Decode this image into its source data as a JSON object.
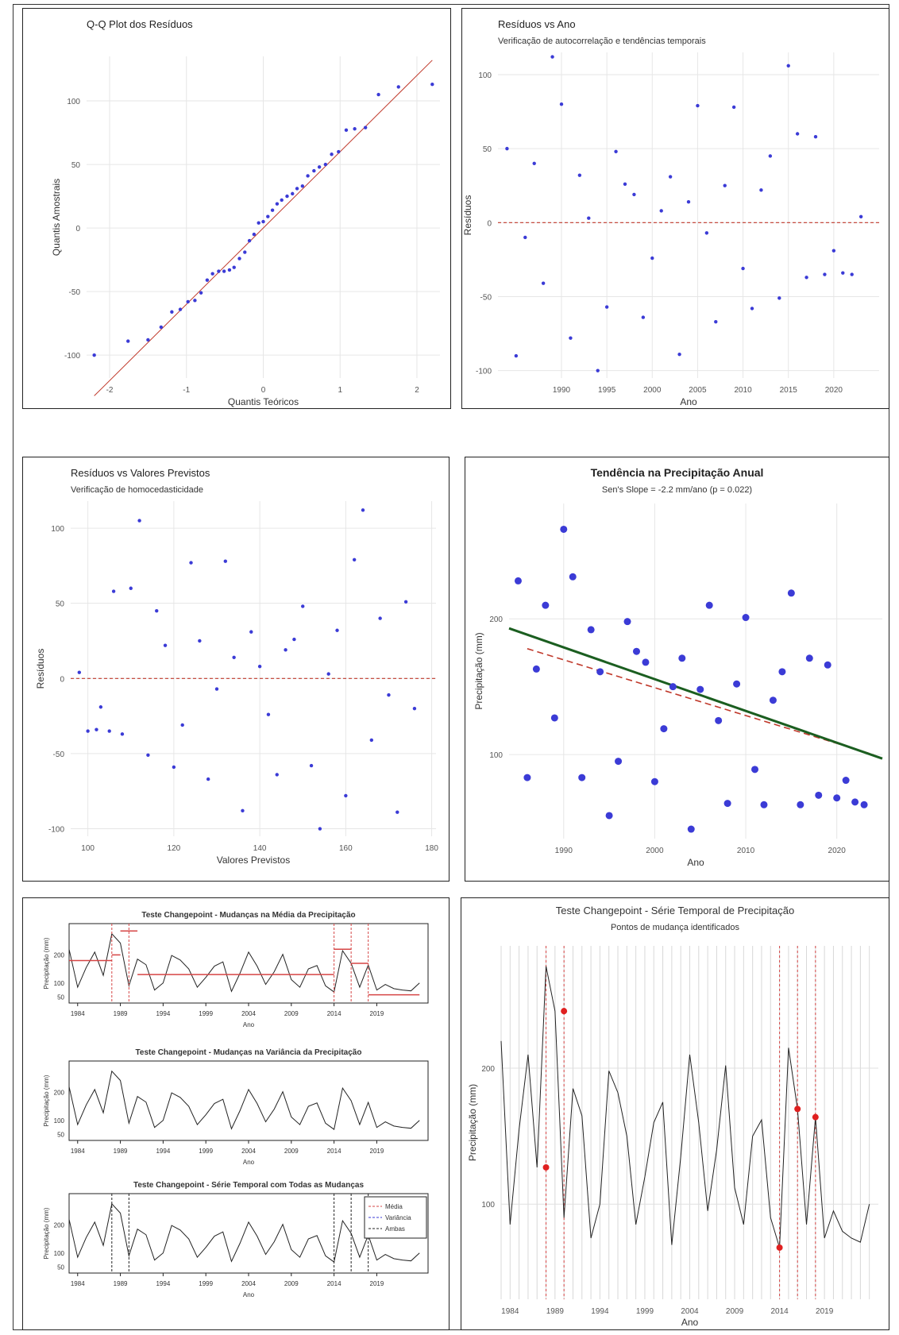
{
  "colors": {
    "point": "#3b3bd6",
    "ref": "#c0392b",
    "trend": "#1b5e20",
    "seg": "#d64545",
    "line": "#222",
    "grid": "#e6e6e6"
  },
  "chart_data": [
    {
      "id": "qq",
      "type": "scatter",
      "title": "Q-Q Plot dos Resíduos",
      "xlabel": "Quantis Teóricos",
      "ylabel": "Quantis Amostrais",
      "xlim": [
        -2.3,
        2.3
      ],
      "ylim": [
        -118,
        135
      ],
      "xticks": [
        -2,
        -1,
        0,
        1,
        2
      ],
      "yticks": [
        -100,
        -50,
        0,
        50,
        100
      ],
      "reference_line": {
        "x": [
          -2.2,
          2.2
        ],
        "y": [
          -132,
          132
        ]
      },
      "points": {
        "x": [
          -2.2,
          -1.76,
          -1.5,
          -1.33,
          -1.19,
          -1.08,
          -0.98,
          -0.89,
          -0.81,
          -0.73,
          -0.66,
          -0.58,
          -0.51,
          -0.44,
          -0.38,
          -0.31,
          -0.24,
          -0.18,
          -0.12,
          -0.06,
          0,
          0.06,
          0.12,
          0.18,
          0.24,
          0.31,
          0.38,
          0.44,
          0.51,
          0.58,
          0.66,
          0.73,
          0.81,
          0.89,
          0.98,
          1.08,
          1.19,
          1.33,
          1.5,
          1.76,
          2.2
        ],
        "y": [
          -100,
          -89,
          -88,
          -78,
          -66,
          -64,
          -58,
          -57,
          -51,
          -41,
          -36,
          -34,
          -34,
          -33,
          -31,
          -24,
          -19,
          -10,
          -5,
          4,
          5,
          9,
          14,
          19,
          22,
          25,
          27,
          31,
          33,
          41,
          45,
          48,
          50,
          58,
          60,
          77,
          78,
          79,
          105,
          111,
          113
        ]
      }
    },
    {
      "id": "ano",
      "type": "scatter",
      "title": "Resíduos vs Ano",
      "subtitle": "Verificação de autocorrelação e tendências temporais",
      "xlabel": "Ano",
      "ylabel": "Resíduos",
      "xlim": [
        1983,
        2025
      ],
      "ylim": [
        -105,
        115
      ],
      "xticks": [
        1990,
        1995,
        2000,
        2005,
        2010,
        2015,
        2020
      ],
      "yticks": [
        -100,
        -50,
        0,
        50,
        100
      ],
      "hline": 0,
      "points": {
        "x": [
          1984,
          1985,
          1986,
          1987,
          1988,
          1989,
          1990,
          1991,
          1992,
          1993,
          1994,
          1995,
          1996,
          1997,
          1998,
          1999,
          2000,
          2001,
          2002,
          2003,
          2004,
          2005,
          2006,
          2007,
          2008,
          2009,
          2010,
          2011,
          2012,
          2013,
          2014,
          2015,
          2016,
          2017,
          2018,
          2019,
          2020,
          2021,
          2022,
          2023
        ],
        "y": [
          50,
          -90,
          -10,
          40,
          -41,
          112,
          80,
          -78,
          32,
          3,
          -100,
          -57,
          48,
          26,
          19,
          -64,
          -24,
          8,
          31,
          -89,
          14,
          79,
          -7,
          -67,
          25,
          78,
          -31,
          -58,
          22,
          45,
          -51,
          106,
          60,
          -37,
          58,
          -35,
          -19,
          -34,
          -35,
          4
        ]
      }
    },
    {
      "id": "prev",
      "type": "scatter",
      "title": "Resíduos vs Valores Previstos",
      "subtitle": "Verificação de homocedasticidade",
      "xlabel": "Valores Previstos",
      "ylabel": "Resíduos",
      "xlim": [
        96,
        181
      ],
      "ylim": [
        -105,
        118
      ],
      "xticks": [
        100,
        120,
        140,
        160,
        180
      ],
      "yticks": [
        -100,
        -50,
        0,
        50,
        100
      ],
      "hline": 0,
      "points": {
        "x": [
          98,
          100,
          102,
          103,
          105,
          106,
          108,
          110,
          112,
          114,
          116,
          118,
          120,
          122,
          124,
          126,
          128,
          130,
          132,
          134,
          136,
          138,
          140,
          142,
          144,
          146,
          148,
          150,
          152,
          154,
          156,
          158,
          160,
          162,
          164,
          166,
          168,
          170,
          172,
          174,
          176
        ],
        "y": [
          4,
          -35,
          -34,
          -19,
          -35,
          58,
          -37,
          60,
          105,
          -51,
          45,
          22,
          -59,
          -31,
          77,
          25,
          -67,
          -7,
          78,
          14,
          -88,
          31,
          8,
          -24,
          -64,
          19,
          26,
          48,
          -58,
          -100,
          3,
          32,
          -78,
          79,
          112,
          -41,
          40,
          -11,
          -89,
          51,
          -20
        ]
      }
    },
    {
      "id": "tend",
      "type": "scatter",
      "title": "Tendência na Precipitação Anual",
      "subtitle": "Sen's Slope = -2.2 mm/ano (p = 0.022)",
      "xlabel": "Ano",
      "ylabel": "Precipitação (mm)",
      "xlim": [
        1984,
        2025
      ],
      "ylim": [
        38,
        285
      ],
      "xticks": [
        1990,
        2000,
        2010,
        2020
      ],
      "yticks": [
        100,
        200
      ],
      "points": {
        "x": [
          1985,
          1986,
          1987,
          1988,
          1989,
          1990,
          1991,
          1992,
          1993,
          1994,
          1995,
          1996,
          1997,
          1998,
          1999,
          2000,
          2001,
          2002,
          2003,
          2004,
          2005,
          2006,
          2007,
          2008,
          2009,
          2010,
          2011,
          2012,
          2013,
          2014,
          2015,
          2016,
          2017,
          2018,
          2019,
          2020,
          2021,
          2022,
          2023
        ],
        "y": [
          228,
          83,
          163,
          210,
          127,
          266,
          231,
          83,
          192,
          161,
          55,
          95,
          198,
          176,
          168,
          80,
          119,
          150,
          171,
          45,
          148,
          210,
          125,
          64,
          152,
          201,
          89,
          63,
          140,
          161,
          219,
          63,
          171,
          70,
          166,
          68,
          81,
          65,
          63
        ]
      },
      "trend_line": {
        "name": "Sen",
        "x": [
          1984,
          2025
        ],
        "y": [
          193,
          97
        ]
      },
      "lm_line": {
        "name": "lm",
        "x": [
          1986,
          2024
        ],
        "y": [
          178,
          100
        ]
      }
    },
    {
      "id": "cpt_mean",
      "type": "line",
      "title": "Teste Changepoint - Mudanças na Média da Precipitação",
      "xlabel": "Ano",
      "ylabel": "Precipitação (mm)",
      "xlim": [
        1983,
        2025
      ],
      "ylim": [
        40,
        300
      ],
      "xticks": [
        1984,
        1989,
        1994,
        1999,
        2004,
        2009,
        2014,
        2019
      ],
      "ytick_labels": [
        "50",
        "100",
        "200"
      ],
      "changepoints": [
        1988,
        1990,
        2014,
        2016,
        2018
      ],
      "segments": [
        {
          "x": [
            1983,
            1988
          ],
          "y": [
            180
          ]
        },
        {
          "x": [
            1988,
            1989
          ],
          "y": [
            200
          ]
        },
        {
          "x": [
            1989,
            1991
          ],
          "y": [
            285
          ]
        },
        {
          "x": [
            1991,
            2014
          ],
          "y": [
            130
          ]
        },
        {
          "x": [
            2014,
            2016
          ],
          "y": [
            220
          ]
        },
        {
          "x": [
            2016,
            2018
          ],
          "y": [
            170
          ]
        },
        {
          "x": [
            2018,
            2024
          ],
          "y": [
            58
          ]
        }
      ]
    },
    {
      "id": "cpt_var",
      "type": "line",
      "title": "Teste Changepoint - Mudanças na Variância da Precipitação",
      "xlabel": "Ano",
      "ylabel": "Precipitação (mm)",
      "xlim": [
        1983,
        2025
      ],
      "ylim": [
        40,
        300
      ],
      "xticks": [
        1984,
        1989,
        1994,
        1999,
        2004,
        2009,
        2014,
        2019
      ],
      "ytick_labels": [
        "50",
        "100",
        "200"
      ]
    },
    {
      "id": "cpt_all",
      "type": "line",
      "title": "Teste Changepoint - Série Temporal com Todas as Mudanças",
      "xlabel": "Ano",
      "ylabel": "Precipitação (mm)",
      "xlim": [
        1983,
        2025
      ],
      "ylim": [
        40,
        300
      ],
      "xticks": [
        1984,
        1989,
        1994,
        1999,
        2004,
        2009,
        2014,
        2019
      ],
      "ytick_labels": [
        "50",
        "100",
        "200"
      ],
      "changepoints": [
        1988,
        1990,
        2014,
        2016,
        2018
      ],
      "legend": [
        "Média",
        "Variância",
        "Ambas"
      ]
    },
    {
      "id": "cpt_ts",
      "type": "line",
      "title": "Teste Changepoint - Série Temporal de Precipitação",
      "subtitle": "Pontos de mudança identificados",
      "xlabel": "Ano",
      "ylabel": "Precipitação (mm)",
      "xlim": [
        1983,
        2025
      ],
      "ylim": [
        30,
        290
      ],
      "xticks": [
        1984,
        1989,
        1994,
        1999,
        2004,
        2009,
        2014,
        2019
      ],
      "yticks": [
        100,
        200
      ],
      "changepoints": {
        "x": [
          1988,
          1990,
          2014,
          2016,
          2018
        ],
        "y": [
          127,
          242,
          68,
          170,
          164
        ]
      }
    }
  ],
  "series": {
    "years": [
      1983,
      1984,
      1985,
      1986,
      1987,
      1988,
      1989,
      1990,
      1991,
      1992,
      1993,
      1994,
      1995,
      1996,
      1997,
      1998,
      1999,
      2000,
      2001,
      2002,
      2003,
      2004,
      2005,
      2006,
      2007,
      2008,
      2009,
      2010,
      2011,
      2012,
      2013,
      2014,
      2015,
      2016,
      2017,
      2018,
      2019,
      2020,
      2021,
      2022,
      2023,
      2024
    ],
    "precip": [
      220,
      85,
      155,
      210,
      127,
      275,
      242,
      90,
      185,
      165,
      75,
      100,
      198,
      182,
      150,
      85,
      120,
      160,
      175,
      70,
      135,
      210,
      160,
      95,
      140,
      202,
      112,
      85,
      150,
      162,
      90,
      68,
      215,
      170,
      85,
      164,
      75,
      95,
      80,
      75,
      72,
      100
    ]
  }
}
